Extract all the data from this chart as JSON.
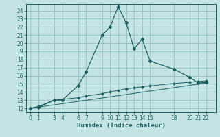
{
  "xlabel": "Humidex (Indice chaleur)",
  "bg_color": "#c4e4e4",
  "grid_color": "#8ab8b8",
  "line_color": "#1a6060",
  "xticks": [
    0,
    1,
    3,
    4,
    6,
    7,
    9,
    10,
    11,
    12,
    13,
    14,
    15,
    18,
    20,
    21,
    22
  ],
  "yticks": [
    12,
    13,
    14,
    15,
    16,
    17,
    18,
    19,
    20,
    21,
    22,
    23,
    24
  ],
  "ylim": [
    11.5,
    24.8
  ],
  "xlim": [
    -0.5,
    23.2
  ],
  "series1_x": [
    0,
    1,
    3,
    4,
    6,
    7,
    9,
    10,
    11,
    12,
    13,
    14,
    15,
    18,
    20,
    21,
    22
  ],
  "series1_y": [
    12,
    12.2,
    13.0,
    13.0,
    14.8,
    16.5,
    21.0,
    22.0,
    24.5,
    22.5,
    19.3,
    20.5,
    17.8,
    16.8,
    15.8,
    15.1,
    15.2
  ],
  "series2_x": [
    0,
    1,
    3,
    4,
    6,
    7,
    9,
    10,
    11,
    12,
    13,
    14,
    15,
    18,
    20,
    21,
    22
  ],
  "series2_y": [
    12.0,
    12.1,
    13.0,
    13.1,
    13.3,
    13.5,
    13.8,
    14.0,
    14.2,
    14.4,
    14.5,
    14.65,
    14.75,
    15.05,
    15.2,
    15.3,
    15.35
  ],
  "series3_x": [
    0,
    22
  ],
  "series3_y": [
    12.0,
    15.1
  ]
}
